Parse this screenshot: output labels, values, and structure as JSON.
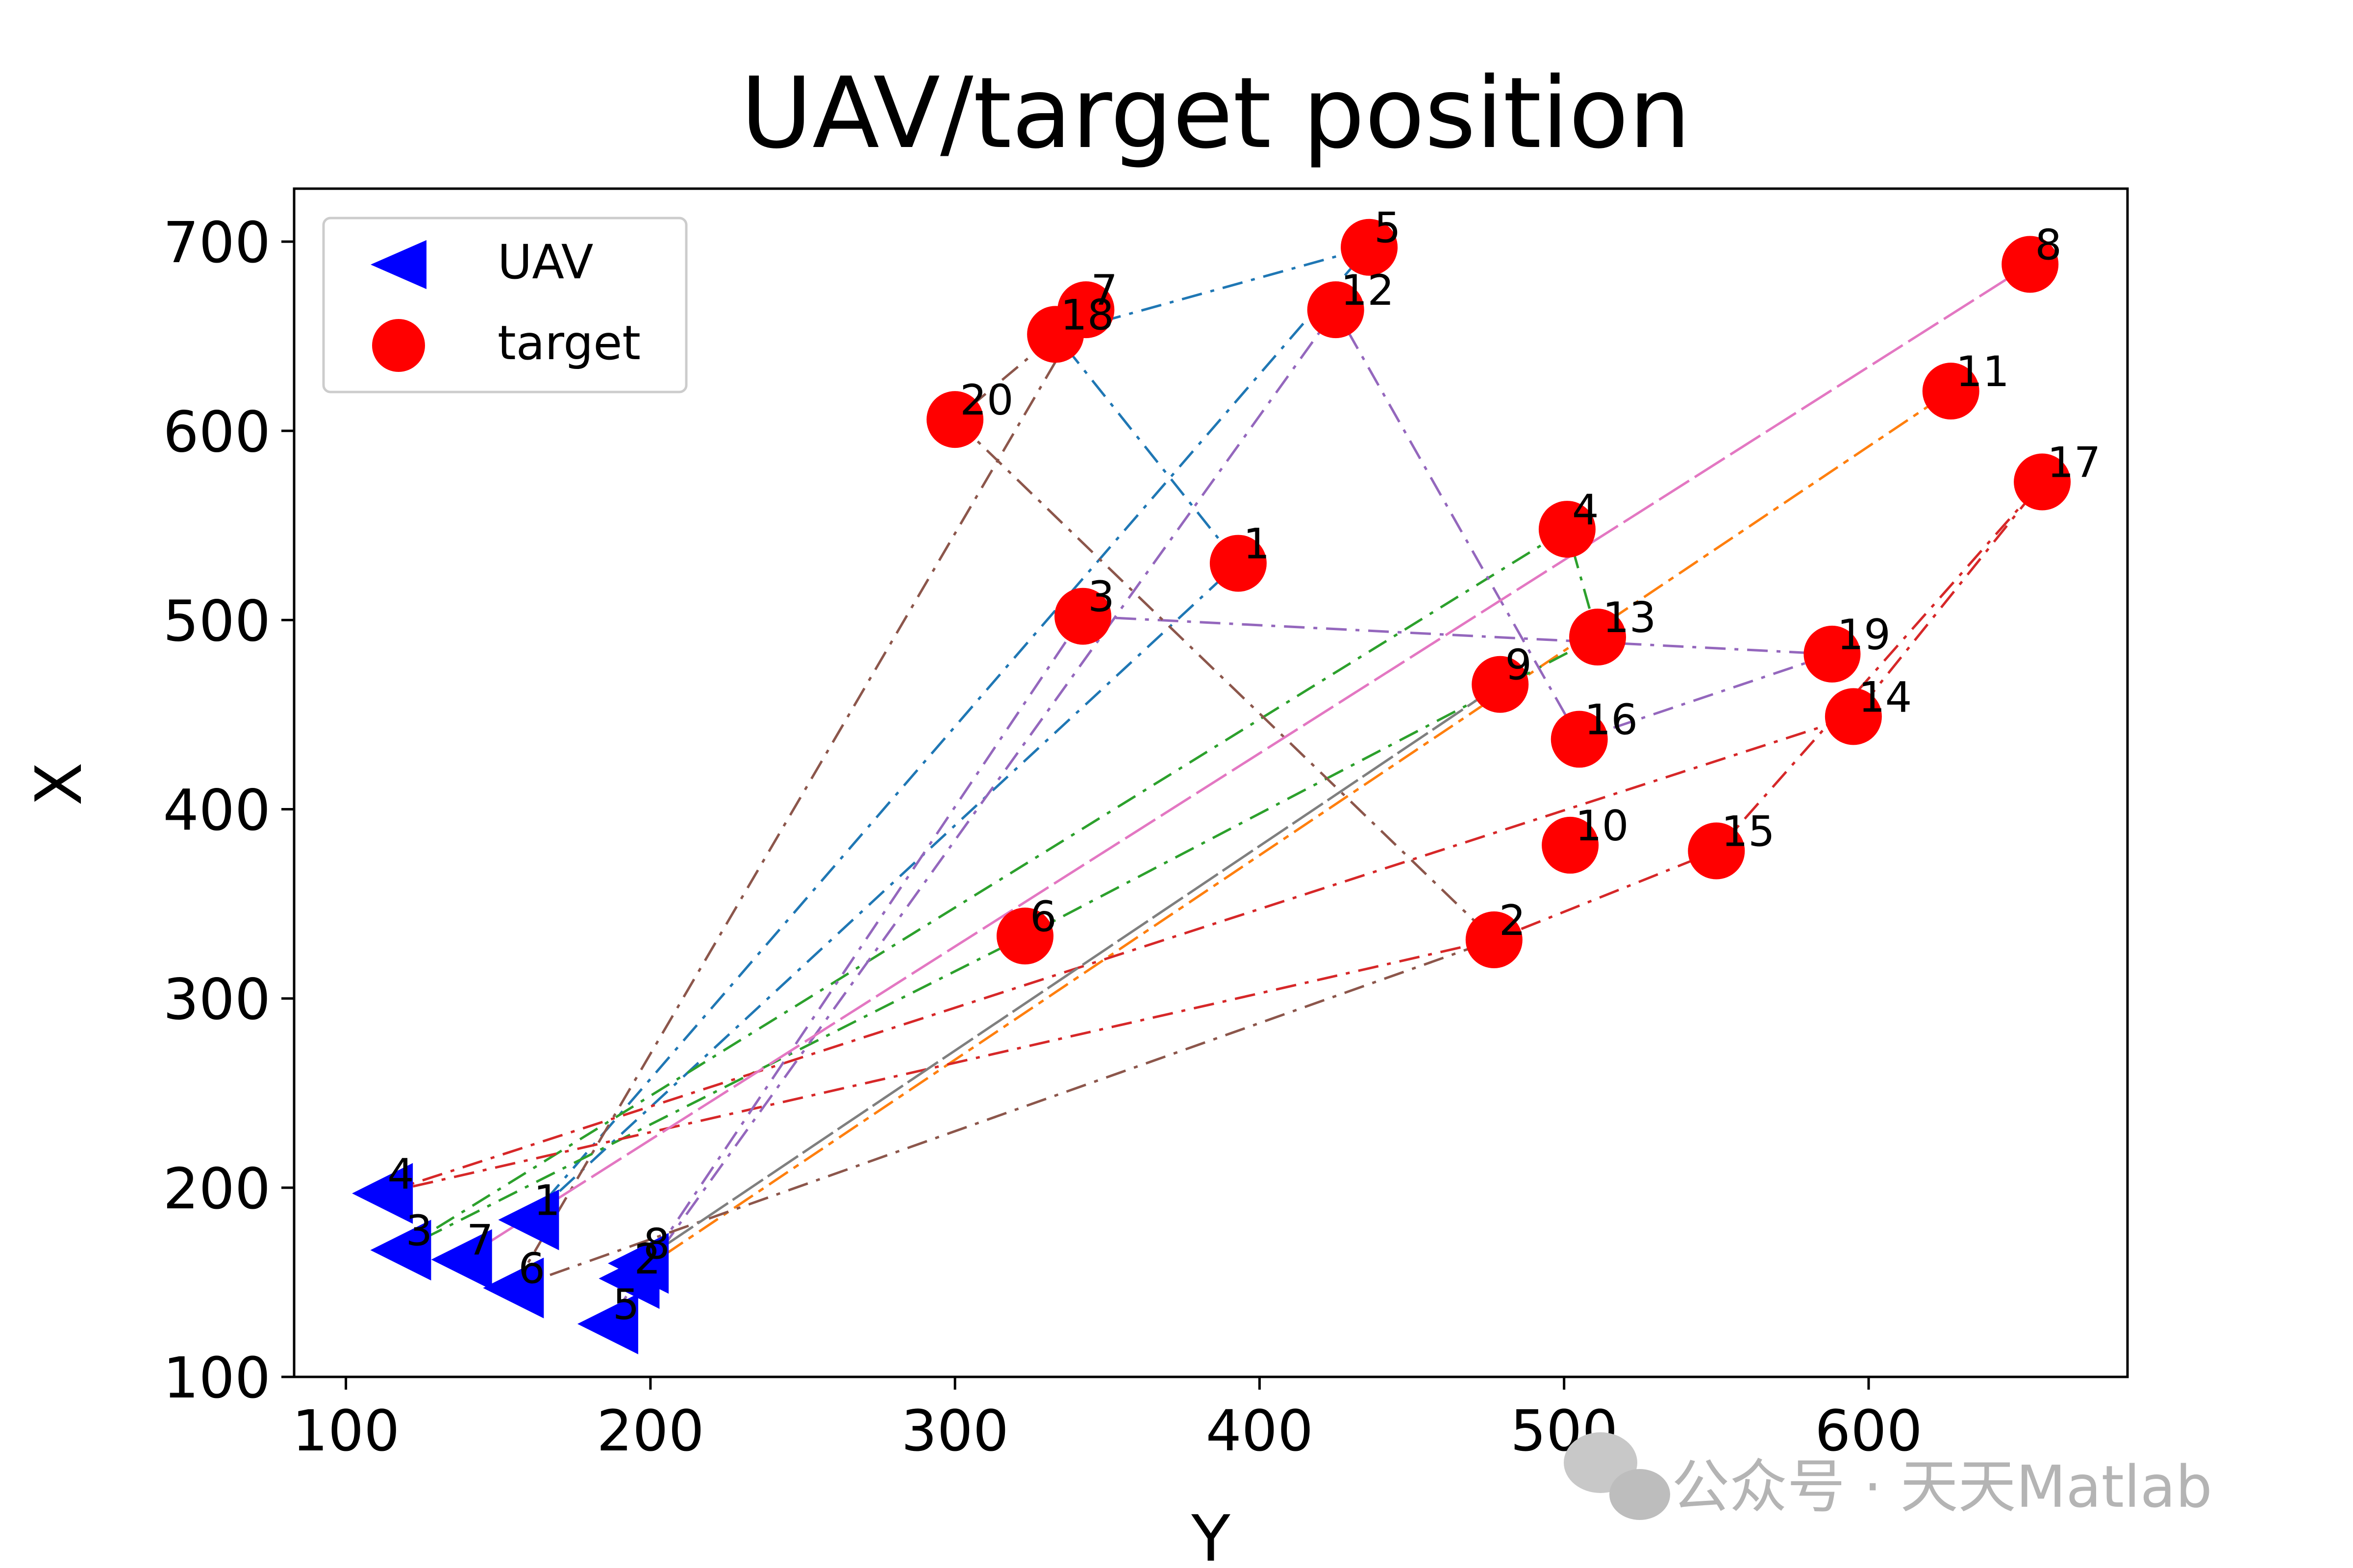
{
  "chart_data": {
    "type": "scatter",
    "title": "UAV/target position",
    "xlabel": "Y",
    "ylabel": "X",
    "xlim": [
      83,
      685
    ],
    "ylim": [
      100,
      728
    ],
    "xticks": [
      100,
      200,
      300,
      400,
      500,
      600
    ],
    "yticks": [
      100,
      200,
      300,
      400,
      500,
      600,
      700
    ],
    "grid": false,
    "legend_position": "top-left",
    "series": [
      {
        "name": "UAV",
        "marker": "left-triangle",
        "color": "#0000ff",
        "points": [
          {
            "label": "1",
            "x": 160,
            "y": 183
          },
          {
            "label": "2",
            "x": 193,
            "y": 152
          },
          {
            "label": "3",
            "x": 118,
            "y": 167
          },
          {
            "label": "4",
            "x": 112,
            "y": 197
          },
          {
            "label": "5",
            "x": 186,
            "y": 128
          },
          {
            "label": "6",
            "x": 155,
            "y": 147
          },
          {
            "label": "7",
            "x": 138,
            "y": 162
          },
          {
            "label": "8",
            "x": 196,
            "y": 160
          }
        ]
      },
      {
        "name": "target",
        "marker": "circle",
        "color": "#ff0000",
        "points": [
          {
            "label": "1",
            "x": 393,
            "y": 530
          },
          {
            "label": "2",
            "x": 477,
            "y": 331
          },
          {
            "label": "3",
            "x": 342,
            "y": 502
          },
          {
            "label": "4",
            "x": 501,
            "y": 548
          },
          {
            "label": "5",
            "x": 436,
            "y": 697
          },
          {
            "label": "6",
            "x": 323,
            "y": 333
          },
          {
            "label": "7",
            "x": 343,
            "y": 664
          },
          {
            "label": "8",
            "x": 653,
            "y": 688
          },
          {
            "label": "9",
            "x": 479,
            "y": 466
          },
          {
            "label": "10",
            "x": 502,
            "y": 381
          },
          {
            "label": "11",
            "x": 627,
            "y": 621
          },
          {
            "label": "12",
            "x": 425,
            "y": 664
          },
          {
            "label": "13",
            "x": 511,
            "y": 491
          },
          {
            "label": "14",
            "x": 595,
            "y": 449
          },
          {
            "label": "15",
            "x": 550,
            "y": 378
          },
          {
            "label": "16",
            "x": 505,
            "y": 437
          },
          {
            "label": "17",
            "x": 657,
            "y": 573
          },
          {
            "label": "18",
            "x": 333,
            "y": 651
          },
          {
            "label": "19",
            "x": 588,
            "y": 482
          },
          {
            "label": "20",
            "x": 300,
            "y": 606
          }
        ]
      }
    ],
    "routes": [
      {
        "uav": "1",
        "color": "#1f77b4",
        "dash": "dashdot",
        "path": [
          [
            160,
            183
          ],
          [
            393,
            530
          ],
          [
            333,
            651
          ],
          [
            436,
            697
          ],
          [
            160,
            183
          ]
        ]
      },
      {
        "uav": "2",
        "color": "#ff7f0e",
        "dash": "dashdot",
        "path": [
          [
            193,
            152
          ],
          [
            627,
            621
          ],
          [
            193,
            152
          ]
        ]
      },
      {
        "uav": "3",
        "color": "#2ca02c",
        "dash": "dashdot",
        "path": [
          [
            118,
            167
          ],
          [
            501,
            548
          ],
          [
            511,
            491
          ],
          [
            323,
            333
          ],
          [
            118,
            167
          ]
        ]
      },
      {
        "uav": "4",
        "color": "#d62728",
        "dash": "dashdot",
        "path": [
          [
            112,
            197
          ],
          [
            595,
            449
          ],
          [
            657,
            573
          ],
          [
            550,
            378
          ],
          [
            477,
            331
          ],
          [
            112,
            197
          ]
        ]
      },
      {
        "uav": "5",
        "color": "#9467bd",
        "dash": "dashdot",
        "path": [
          [
            186,
            128
          ],
          [
            342,
            502
          ],
          [
            588,
            482
          ],
          [
            505,
            437
          ],
          [
            425,
            664
          ],
          [
            186,
            128
          ]
        ]
      },
      {
        "uav": "6",
        "color": "#8c564b",
        "dash": "dashdot",
        "path": [
          [
            155,
            147
          ],
          [
            343,
            664
          ],
          [
            300,
            606
          ],
          [
            477,
            331
          ],
          [
            155,
            147
          ]
        ]
      },
      {
        "uav": "7",
        "color": "#e377c2",
        "dash": "dashdot",
        "path": [
          [
            138,
            162
          ],
          [
            653,
            688
          ],
          [
            138,
            162
          ]
        ]
      },
      {
        "uav": "8",
        "color": "#7f7f7f",
        "dash": "dashdot",
        "path": [
          [
            196,
            160
          ],
          [
            479,
            466
          ],
          [
            196,
            160
          ]
        ]
      }
    ]
  },
  "watermark": "公众号 · 天天Matlab"
}
